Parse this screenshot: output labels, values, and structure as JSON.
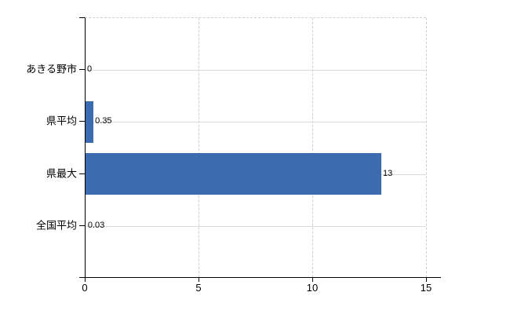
{
  "chart_data": {
    "type": "bar",
    "orientation": "horizontal",
    "title": "",
    "xlabel": "",
    "ylabel": "",
    "categories": [
      "あきる野市",
      "県平均",
      "県最大",
      "全国平均"
    ],
    "values": [
      0,
      0.35,
      13,
      0.03
    ],
    "value_labels": [
      "0",
      "0.35",
      "13",
      "0.03"
    ],
    "xlim": [
      0,
      15
    ],
    "x_ticks": [
      0,
      5,
      10,
      15
    ],
    "x_tick_labels": [
      "0",
      "5",
      "10",
      "15"
    ],
    "grid": "on",
    "legend": "none",
    "colors": {
      "bar": "#3c6bb0",
      "grid_solid": "#dadada",
      "grid_dashed": "#cfcfcf",
      "axis": "#000000",
      "text": "#000000",
      "background": "#ffffff"
    }
  }
}
